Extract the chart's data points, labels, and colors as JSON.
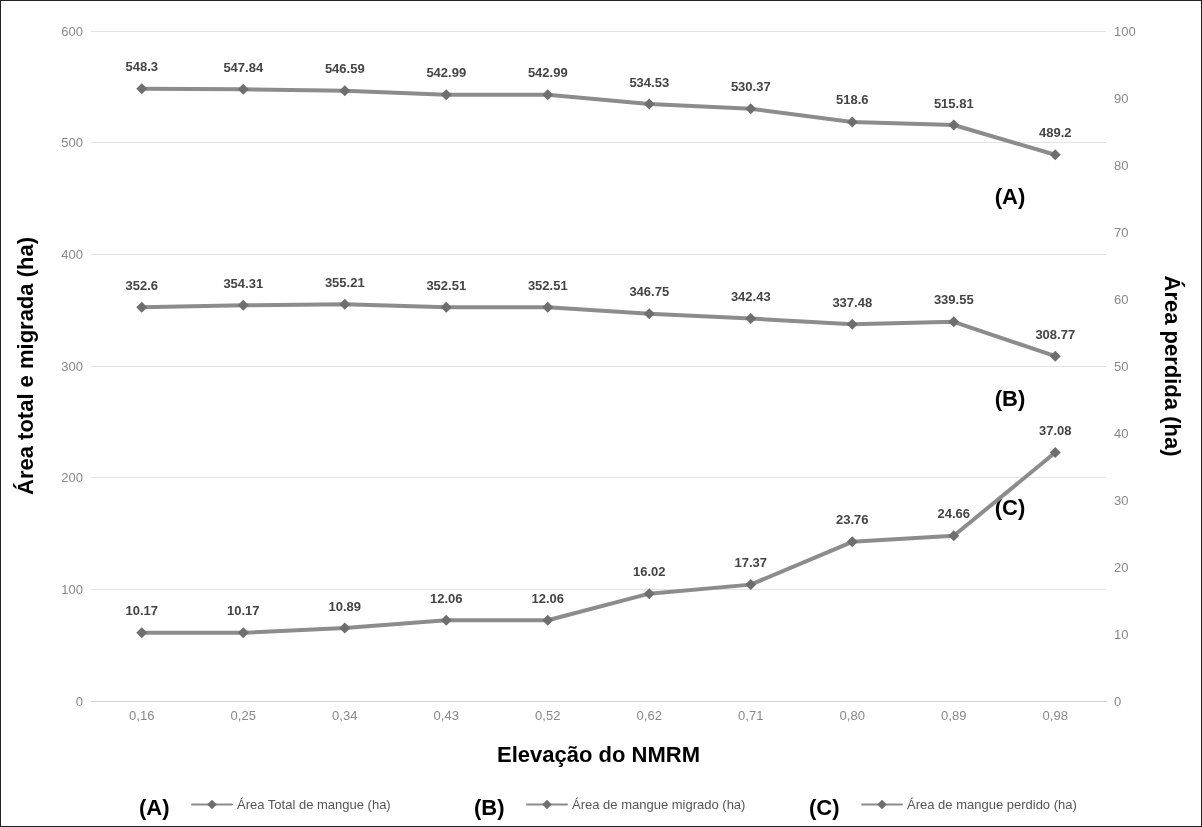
{
  "chart_data": {
    "type": "line",
    "xlabel": "Elevação do NMRM",
    "ylabel": "Área total e migrada (ha)",
    "y2label": "Área perdida (ha)",
    "categories": [
      "0,16",
      "0,25",
      "0,34",
      "0,43",
      "0,52",
      "0,62",
      "0,71",
      "0,80",
      "0,89",
      "0,98"
    ],
    "series": [
      {
        "name": "Área Total de mangue (ha)",
        "color": "#8c8c8c",
        "values": [
          548.3,
          547.84,
          546.59,
          542.99,
          542.99,
          534.53,
          530.37,
          518.6,
          515.81,
          489.2
        ]
      },
      {
        "name": "Área de mangue migrado (ha)",
        "color": "#8c8c8c",
        "values": [
          352.6,
          354.31,
          355.21,
          352.51,
          352.51,
          346.75,
          342.43,
          337.48,
          339.55,
          308.77
        ]
      },
      {
        "name": "Área de mangue perdido (ha)",
        "color": "#8c8c8c",
        "axis": "y2",
        "values": [
          10.17,
          10.17,
          10.89,
          12.06,
          12.06,
          16.02,
          17.37,
          23.76,
          24.66,
          37.08
        ]
      }
    ],
    "ylim": [
      0,
      600
    ],
    "yticks": [
      0,
      100,
      200,
      300,
      400,
      500,
      600
    ],
    "y2lim": [
      0,
      100
    ],
    "y2ticks": [
      0,
      10,
      20,
      30,
      40,
      50,
      60,
      70,
      80,
      90,
      100
    ],
    "annotations": [
      "(A)",
      "(B)",
      "(C)",
      "(A)",
      "(B)",
      "(C)"
    ],
    "data_labels": true,
    "grid": "y",
    "legend": "bottom",
    "marker": "diamond",
    "line_style": "solid"
  }
}
